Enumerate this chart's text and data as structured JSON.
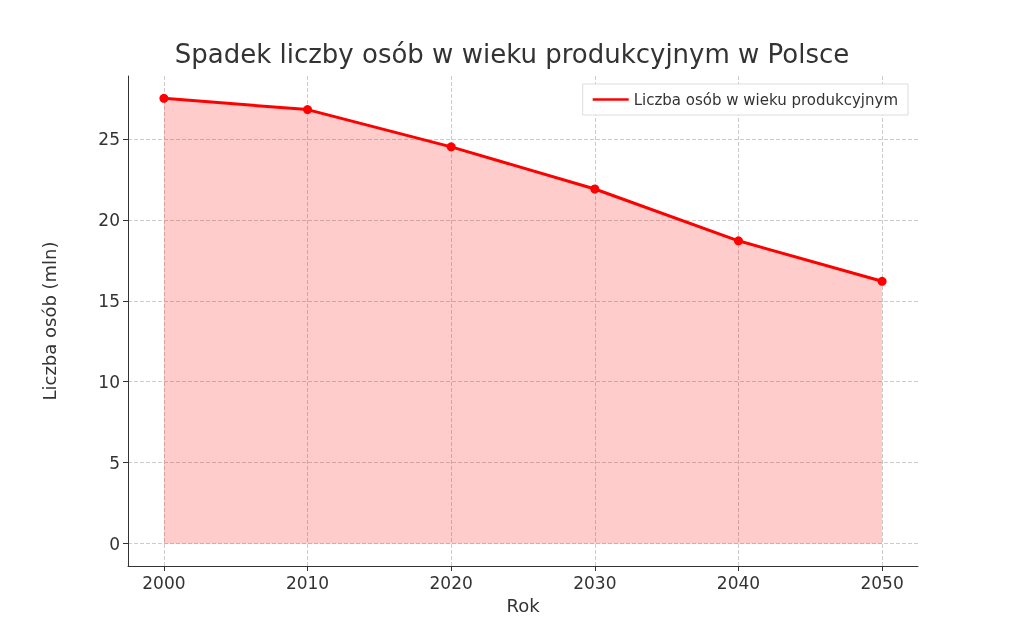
{
  "chart_data": {
    "type": "area",
    "title": "Spadek liczby osób w wieku produkcyjnym w Polsce",
    "xlabel": "Rok",
    "ylabel": "Liczba osób (mln)",
    "x": [
      2000,
      2010,
      2020,
      2030,
      2040,
      2050
    ],
    "series": [
      {
        "name": "Liczba osób w wieku produkcyjnym",
        "color": "#ff0000",
        "values": [
          27.5,
          26.8,
          24.5,
          21.9,
          18.7,
          16.2
        ]
      }
    ],
    "xlim": [
      1997.5,
      2052.5
    ],
    "xticks": [
      2000,
      2010,
      2020,
      2030,
      2040,
      2050
    ],
    "ylim": [
      -1.375,
      28.875
    ],
    "yticks": [
      0,
      5,
      10,
      15,
      20,
      25
    ],
    "grid": true,
    "legend": "top right",
    "marker": "circle",
    "line_style": "solid"
  }
}
